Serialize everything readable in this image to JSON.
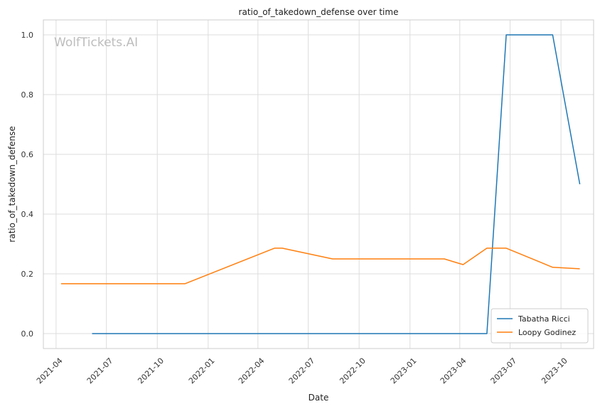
{
  "chart_data": {
    "type": "line",
    "title": "ratio_of_takedown_defense over time",
    "xlabel": "Date",
    "ylabel": "ratio_of_takedown_defense",
    "watermark": "WolfTickets.AI",
    "xlim": [
      "2021-03-09",
      "2023-11-29"
    ],
    "ylim": [
      -0.05,
      1.05
    ],
    "x_ticks": [
      "2021-04-01",
      "2021-07-01",
      "2021-10-01",
      "2022-01-01",
      "2022-04-01",
      "2022-07-01",
      "2022-10-01",
      "2023-01-01",
      "2023-04-01",
      "2023-07-01",
      "2023-10-01"
    ],
    "x_tick_labels": [
      "2021-04",
      "2021-07",
      "2021-10",
      "2022-01",
      "2022-04",
      "2022-07",
      "2022-10",
      "2023-01",
      "2023-04",
      "2023-07",
      "2023-10"
    ],
    "y_ticks": [
      0.0,
      0.2,
      0.4,
      0.6,
      0.8,
      1.0
    ],
    "y_tick_labels": [
      "0.0",
      "0.2",
      "0.4",
      "0.6",
      "0.8",
      "1.0"
    ],
    "grid": true,
    "legend_position": "bottom-right",
    "series": [
      {
        "name": "Tabatha Ricci",
        "color": "#1f77b4",
        "x": [
          "2021-06-05",
          "2023-05-20",
          "2023-06-24",
          "2023-09-16",
          "2023-11-04"
        ],
        "y": [
          0.0,
          0.0,
          1.0,
          1.0,
          0.5
        ]
      },
      {
        "name": "Loopy Godinez",
        "color": "#ff7f0e",
        "x": [
          "2021-04-10",
          "2021-11-20",
          "2022-05-01",
          "2022-05-15",
          "2022-08-14",
          "2023-03-04",
          "2023-04-07",
          "2023-05-20",
          "2023-06-24",
          "2023-09-16",
          "2023-11-04"
        ],
        "y": [
          0.167,
          0.167,
          0.286,
          0.286,
          0.25,
          0.25,
          0.231,
          0.286,
          0.286,
          0.222,
          0.217
        ]
      }
    ]
  }
}
